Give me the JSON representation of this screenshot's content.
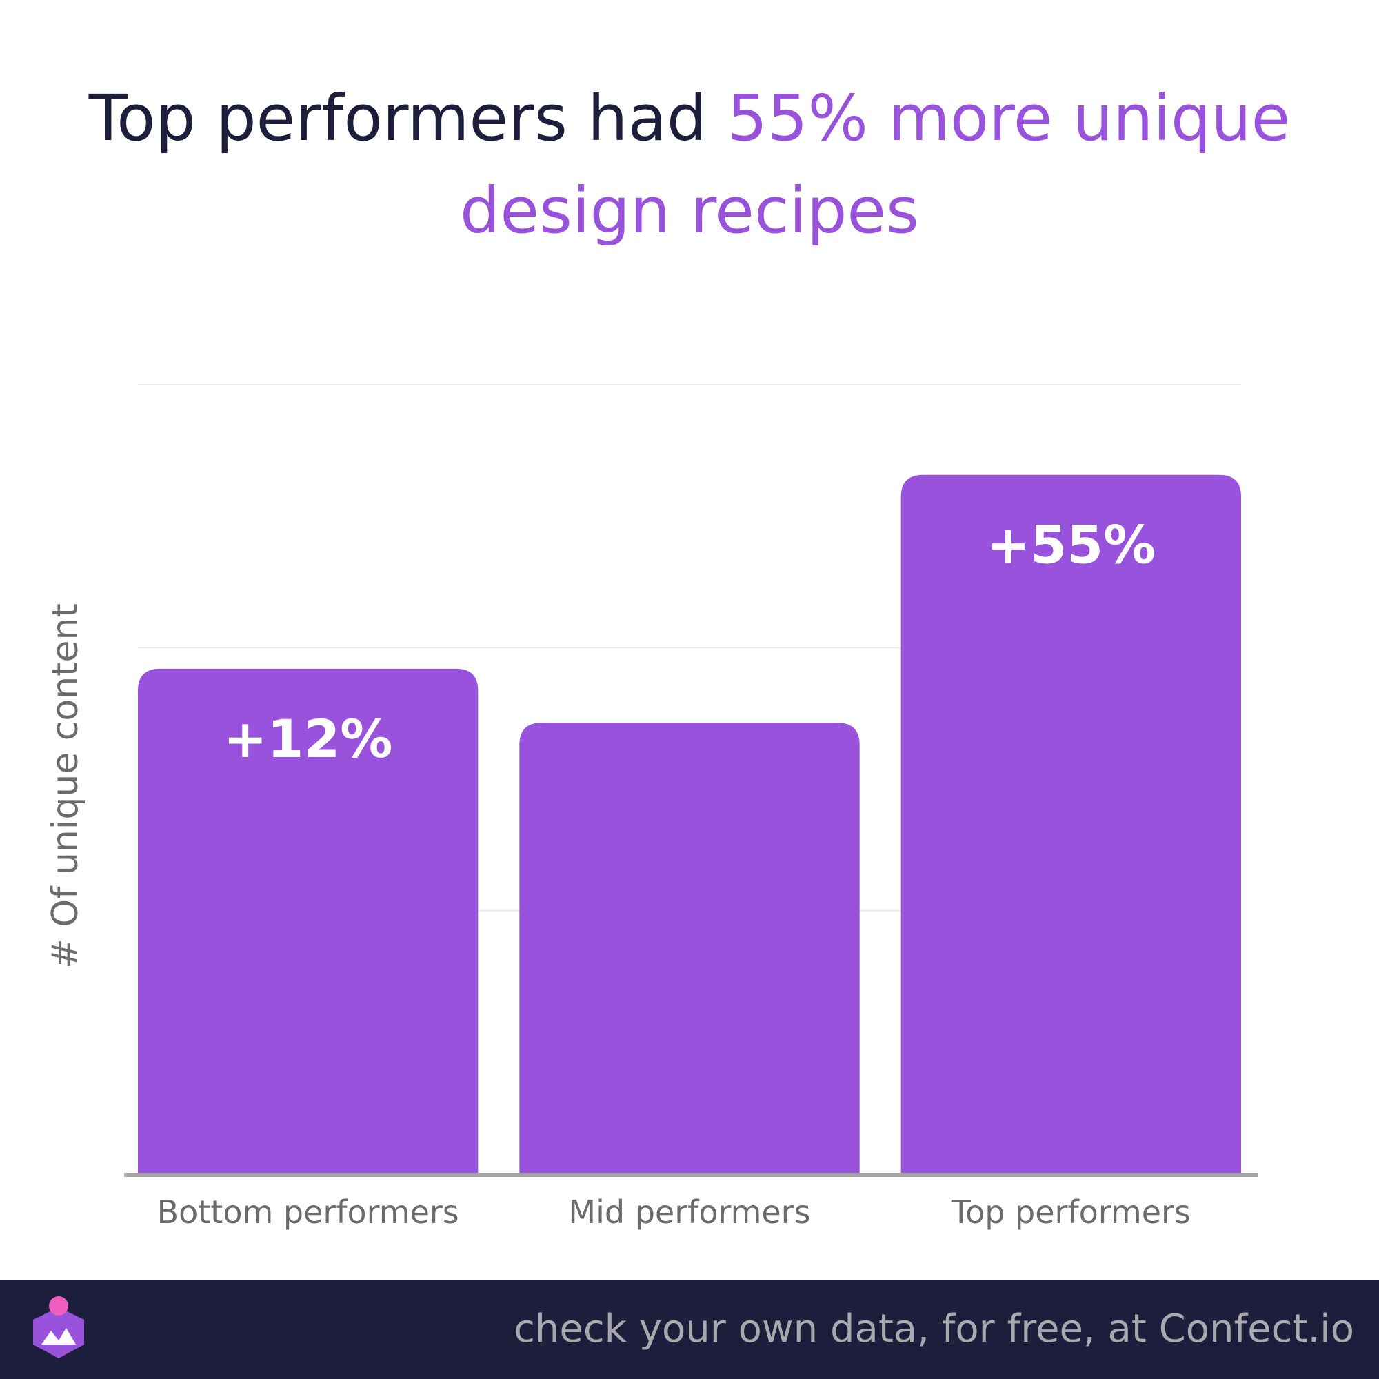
{
  "title": {
    "line1_plain": "Top performers had ",
    "line1_accent": "55% more unique",
    "line2_accent": "design recipes"
  },
  "colors": {
    "title_dark": "#1c1e3b",
    "accent": "#9852dc",
    "bar": "#9852dc",
    "grid": "#ebebeb",
    "axis": "#a7a7a7",
    "tick_text": "#6b6b6b",
    "footer_bg": "#1c1e3b",
    "footer_text": "#a8a8ae"
  },
  "chart_data": {
    "type": "bar",
    "categories": [
      "Bottom performers",
      "Mid performers",
      "Top performers"
    ],
    "values": [
      112,
      100,
      155
    ],
    "data_labels": [
      "+12%",
      "",
      "+55%"
    ],
    "ylabel": "# Of unique content",
    "xlabel": "",
    "ylim": [
      0,
      175
    ],
    "grid": true,
    "legend": "none"
  },
  "footer": {
    "logo_icon": "confect-logo-icon",
    "tagline": "check your own data, for free, at Confect.io"
  }
}
